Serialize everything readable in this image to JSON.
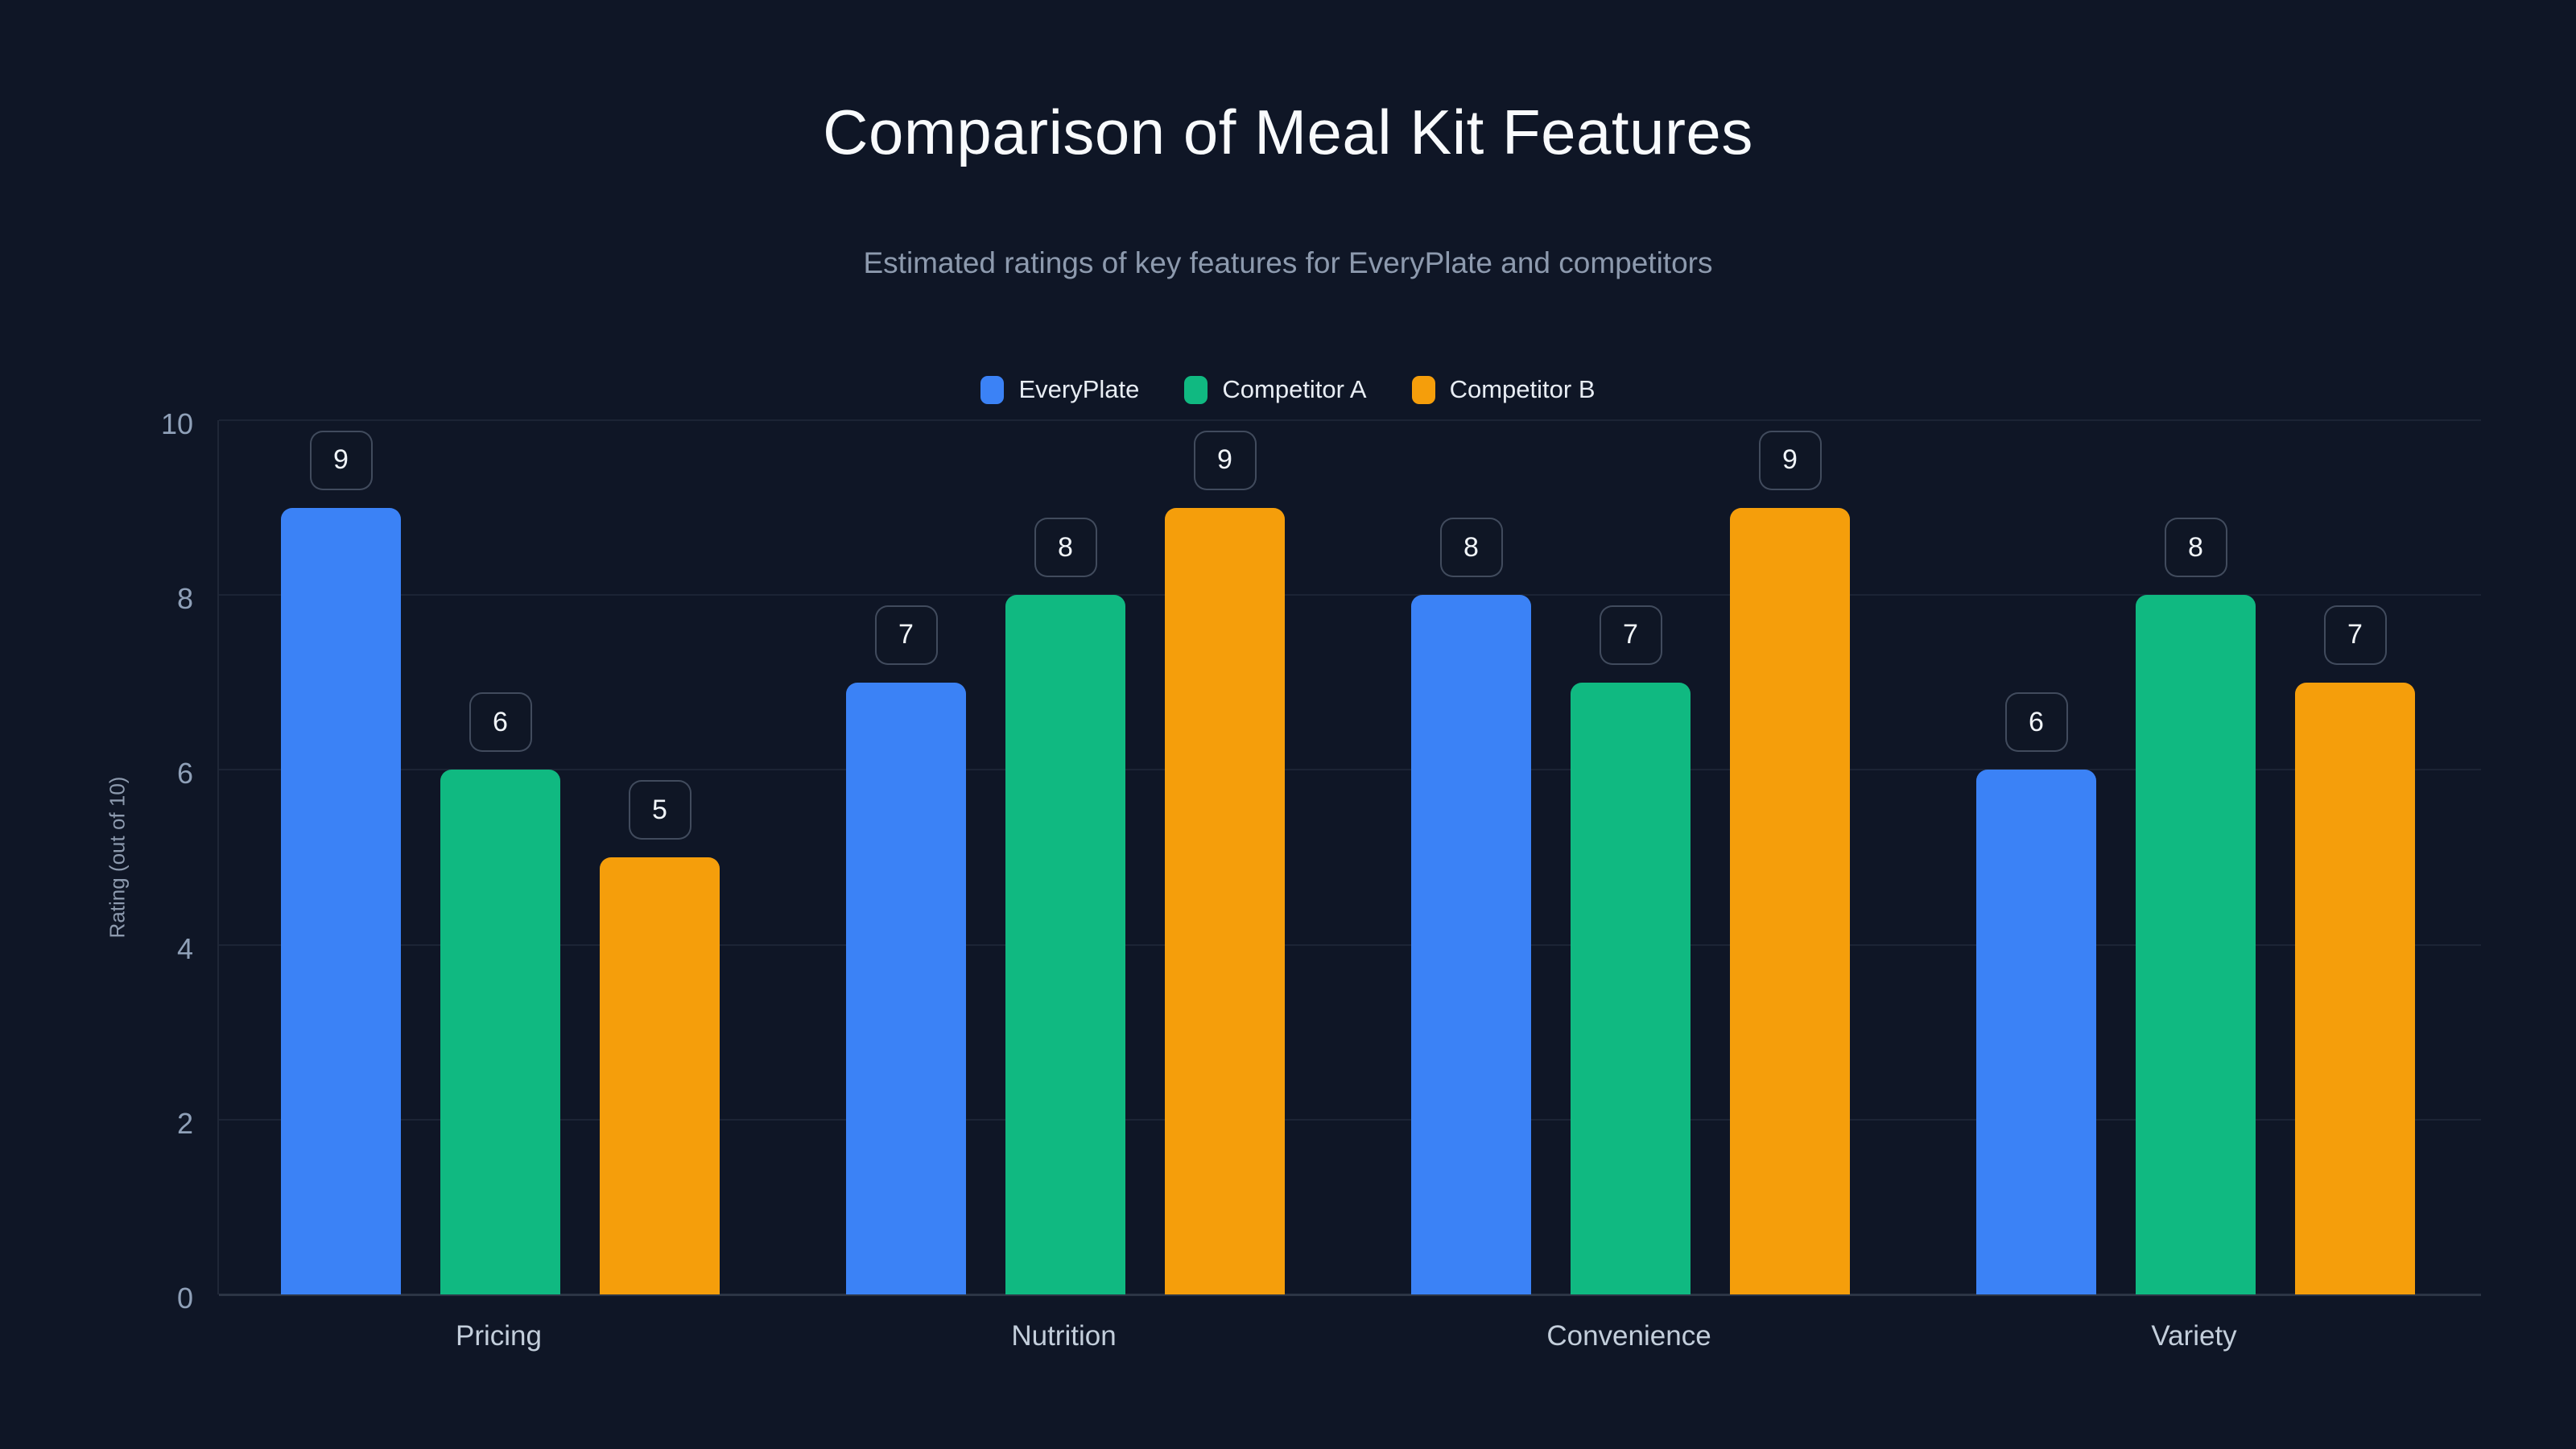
{
  "page": {
    "background": "#0f1626"
  },
  "chart_data": {
    "type": "bar",
    "title": "Comparison of Meal Kit Features",
    "subtitle": "Estimated ratings of key features for EveryPlate and competitors",
    "ylabel": "Rating (out of 10)",
    "ylim": [
      0,
      10
    ],
    "yticks": [
      0,
      2,
      4,
      6,
      8,
      10
    ],
    "categories": [
      "Pricing",
      "Nutrition",
      "Convenience",
      "Variety"
    ],
    "series": [
      {
        "name": "EveryPlate",
        "color": "#3b82f6",
        "values": [
          9,
          7,
          8,
          6
        ]
      },
      {
        "name": "Competitor A",
        "color": "#10b981",
        "values": [
          6,
          8,
          7,
          8
        ]
      },
      {
        "name": "Competitor B",
        "color": "#f59e0b",
        "values": [
          5,
          9,
          9,
          7
        ]
      }
    ],
    "legend_position": "top",
    "grid": true,
    "data_labels": true
  }
}
